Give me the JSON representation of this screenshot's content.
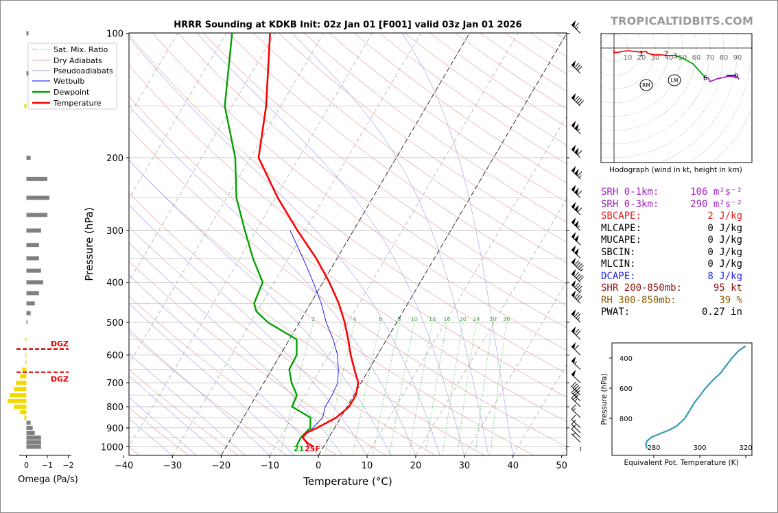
{
  "title": "HRRR Sounding at KDKB Init: 02z Jan 01 [F001] valid 03z Jan 01 2026",
  "brand": "TROPICALTIDBITS.COM",
  "colors": {
    "temperature": "#ff0000",
    "dewpoint": "#00a000",
    "wetbulb": "#0000dd",
    "dry_adiabat": "#e3a3a3",
    "pseudoadiabat": "#a9a9ea",
    "mix_ratio": "#3caa3c",
    "srh": "#a020c0",
    "cape": "#dd2222",
    "dcape": "#2222ee",
    "shear": "#8b1010",
    "rh": "#8b5a00",
    "omega_up": "#f5d800",
    "omega_down": "#808080",
    "thetae": "#3399bb"
  },
  "chart_data": [
    {
      "type": "line",
      "name": "skew-t",
      "xlabel": "Temperature (°C)",
      "ylabel": "Pressure (hPa)",
      "xlim": [
        -40,
        50
      ],
      "ylim": [
        1050,
        100
      ],
      "yscale": "log",
      "skew": true,
      "x_ticks": [
        "−40",
        "−30",
        "−20",
        "−10",
        "0",
        "10",
        "20",
        "30",
        "40",
        "50"
      ],
      "y_ticks": [
        "100",
        "200",
        "300",
        "400",
        "500",
        "600",
        "700",
        "800",
        "900",
        "1000"
      ],
      "legend": [
        "Sat. Mix. Ratio",
        "Dry Adiabats",
        "Pseudoadiabats",
        "Wetbulb",
        "Dewpoint",
        "Temperature"
      ],
      "legend_position": "top-left",
      "mixing_ratio_labels": [
        "2",
        "4",
        "6",
        "8",
        "10",
        "13",
        "16",
        "20",
        "24",
        "30",
        "36"
      ],
      "surface_labels": {
        "dewpoint": "21",
        "temperature": "25F"
      },
      "series": [
        {
          "name": "Temperature",
          "points": [
            [
              1000,
              -2.0
            ],
            [
              980,
              -3.7
            ],
            [
              950,
              -5.4
            ],
            [
              925,
              -5.2
            ],
            [
              900,
              -3.6
            ],
            [
              850,
              -0.9
            ],
            [
              800,
              0.4
            ],
            [
              750,
              0.4
            ],
            [
              700,
              -0.6
            ],
            [
              650,
              -3.0
            ],
            [
              600,
              -5.5
            ],
            [
              550,
              -7.9
            ],
            [
              500,
              -10.7
            ],
            [
              450,
              -14.2
            ],
            [
              400,
              -18.7
            ],
            [
              350,
              -24.3
            ],
            [
              300,
              -31.5
            ],
            [
              250,
              -39.5
            ],
            [
              200,
              -48.3
            ],
            [
              150,
              -53.0
            ],
            [
              100,
              -61.0
            ]
          ]
        },
        {
          "name": "Dewpoint",
          "points": [
            [
              1000,
              -5.6
            ],
            [
              950,
              -5.8
            ],
            [
              900,
              -5.0
            ],
            [
              850,
              -6.2
            ],
            [
              800,
              -11.3
            ],
            [
              750,
              -11.7
            ],
            [
              700,
              -14.3
            ],
            [
              650,
              -16.4
            ],
            [
              600,
              -16.6
            ],
            [
              550,
              -18.5
            ],
            [
              500,
              -26.5
            ],
            [
              470,
              -30.2
            ],
            [
              450,
              -31.6
            ],
            [
              400,
              -32.4
            ],
            [
              350,
              -37.3
            ],
            [
              300,
              -42.3
            ],
            [
              250,
              -48.0
            ],
            [
              200,
              -53.1
            ],
            [
              150,
              -61.5
            ],
            [
              100,
              -68.8
            ]
          ]
        },
        {
          "name": "Wetbulb",
          "points": [
            [
              1000,
              -3.0
            ],
            [
              950,
              -5.4
            ],
            [
              900,
              -4.5
            ],
            [
              850,
              -3.7
            ],
            [
              800,
              -4.5
            ],
            [
              750,
              -4.5
            ],
            [
              700,
              -4.8
            ],
            [
              650,
              -6.3
            ],
            [
              600,
              -8.2
            ],
            [
              550,
              -11.0
            ],
            [
              500,
              -14.5
            ],
            [
              450,
              -17.8
            ],
            [
              400,
              -22.0
            ],
            [
              350,
              -27.0
            ],
            [
              300,
              -33.0
            ]
          ]
        }
      ],
      "wind_barbs_kt": [
        {
          "p": 975,
          "spd": 5
        },
        {
          "p": 950,
          "spd": 10
        },
        {
          "p": 925,
          "spd": 10
        },
        {
          "p": 900,
          "spd": 10
        },
        {
          "p": 850,
          "spd": 15
        },
        {
          "p": 800,
          "spd": 25
        },
        {
          "p": 775,
          "spd": 35
        },
        {
          "p": 750,
          "spd": 45
        },
        {
          "p": 700,
          "spd": 50
        },
        {
          "p": 650,
          "spd": 55
        },
        {
          "p": 600,
          "spd": 60
        },
        {
          "p": 550,
          "spd": 70
        },
        {
          "p": 500,
          "spd": 75
        },
        {
          "p": 450,
          "spd": 80
        },
        {
          "p": 425,
          "spd": 85
        },
        {
          "p": 400,
          "spd": 90
        },
        {
          "p": 375,
          "spd": 95
        },
        {
          "p": 350,
          "spd": 100
        },
        {
          "p": 325,
          "spd": 100
        },
        {
          "p": 300,
          "spd": 105
        },
        {
          "p": 275,
          "spd": 110
        },
        {
          "p": 250,
          "spd": 110
        },
        {
          "p": 225,
          "spd": 115
        },
        {
          "p": 200,
          "spd": 110
        },
        {
          "p": 175,
          "spd": 105
        },
        {
          "p": 150,
          "spd": 90
        },
        {
          "p": 125,
          "spd": 80
        },
        {
          "p": 100,
          "spd": 65
        }
      ]
    },
    {
      "type": "bar",
      "name": "omega",
      "xlabel": "Omega (Pa/s)",
      "x_ticks": [
        "0",
        "−1",
        "−2"
      ],
      "dgz_label": "DGZ",
      "dgz_levels_hpa": [
        580,
        660
      ],
      "values": [
        {
          "p": 1000,
          "w": 0.7
        },
        {
          "p": 975,
          "w": 0.7
        },
        {
          "p": 950,
          "w": 0.7
        },
        {
          "p": 925,
          "w": 0.4
        },
        {
          "p": 900,
          "w": 0.3
        },
        {
          "p": 875,
          "w": 0.2
        },
        {
          "p": 850,
          "w": -0.1
        },
        {
          "p": 825,
          "w": -0.3
        },
        {
          "p": 800,
          "w": -0.6
        },
        {
          "p": 775,
          "w": -0.9
        },
        {
          "p": 750,
          "w": -0.8
        },
        {
          "p": 725,
          "w": -0.6
        },
        {
          "p": 700,
          "w": -0.5
        },
        {
          "p": 675,
          "w": -0.3
        },
        {
          "p": 650,
          "w": -0.2
        },
        {
          "p": 625,
          "w": -0.05
        },
        {
          "p": 600,
          "w": -0.05
        },
        {
          "p": 550,
          "w": -0.05
        },
        {
          "p": 500,
          "w": 0.05
        },
        {
          "p": 475,
          "w": 0.2
        },
        {
          "p": 450,
          "w": 0.4
        },
        {
          "p": 425,
          "w": 0.6
        },
        {
          "p": 400,
          "w": 0.8
        },
        {
          "p": 375,
          "w": 0.7
        },
        {
          "p": 350,
          "w": 0.6
        },
        {
          "p": 325,
          "w": 0.6
        },
        {
          "p": 300,
          "w": 0.7
        },
        {
          "p": 275,
          "w": 1.0
        },
        {
          "p": 250,
          "w": 1.1
        },
        {
          "p": 225,
          "w": 1.0
        },
        {
          "p": 200,
          "w": 0.2
        },
        {
          "p": 150,
          "w": -0.1
        },
        {
          "p": 125,
          "w": 0.1
        },
        {
          "p": 100,
          "w": 0.1
        }
      ]
    },
    {
      "type": "line",
      "name": "hodograph",
      "xlabel": "Hodograph (wind in kt, height in km)",
      "ring_labels": [
        "10",
        "20",
        "30",
        "40",
        "50",
        "60",
        "70",
        "80",
        "90"
      ],
      "height_labels": [
        {
          "label": "1",
          "u": 40,
          "v": -7
        },
        {
          "label": "2",
          "u": 76,
          "v": -7
        },
        {
          "label": "3",
          "u": 89,
          "v": -11
        },
        {
          "label": "6",
          "u": 133,
          "v": -43
        },
        {
          "label": "9",
          "u": 178,
          "v": -40
        }
      ],
      "motion_markers": [
        {
          "label": "LM",
          "u": 89,
          "v": -7
        },
        {
          "label": "RM",
          "u": 48,
          "v": -14
        }
      ],
      "segments": [
        {
          "color": "#ff0000",
          "points": [
            [
              0,
              -3
            ],
            [
              0,
              -7
            ],
            [
              20,
              -4
            ],
            [
              40,
              -6
            ],
            [
              46,
              -5
            ],
            [
              50,
              -8
            ],
            [
              58,
              -10
            ],
            [
              70,
              -10
            ],
            [
              76,
              -11
            ],
            [
              89,
              -11
            ]
          ]
        },
        {
          "color": "#00a000",
          "points": [
            [
              89,
              -11
            ],
            [
              102,
              -16
            ],
            [
              115,
              -23
            ],
            [
              124,
              -33
            ],
            [
              133,
              -43
            ],
            [
              137,
              -43
            ]
          ]
        },
        {
          "color": "#a020c0",
          "points": [
            [
              137,
              -43
            ],
            [
              140,
              -49
            ],
            [
              150,
              -45
            ],
            [
              168,
              -41
            ],
            [
              181,
              -43
            ],
            [
              182,
              -46
            ]
          ]
        },
        {
          "color": "#0000dd",
          "points": [
            [
              164,
              -40
            ],
            [
              178,
              -40
            ]
          ]
        }
      ]
    },
    {
      "type": "line",
      "name": "theta-e",
      "xlabel": "Equivalent Pot. Temperature (K)",
      "ylabel": "Pressure (hPa)",
      "xlim": [
        272,
        322
      ],
      "ylim": [
        1000,
        300
      ],
      "x_ticks": [
        "280",
        "300",
        "320"
      ],
      "y_ticks": [
        "400",
        "600",
        "800"
      ],
      "series": [
        {
          "name": "Theta-E",
          "points": [
            [
              1000,
              277
            ],
            [
              975,
              276.5
            ],
            [
              950,
              277
            ],
            [
              925,
              279
            ],
            [
              900,
              283
            ],
            [
              875,
              287
            ],
            [
              850,
              290
            ],
            [
              800,
              293.5
            ],
            [
              750,
              295.5
            ],
            [
              700,
              297.5
            ],
            [
              650,
              300
            ],
            [
              600,
              302.5
            ],
            [
              550,
              305.5
            ],
            [
              500,
              309
            ],
            [
              450,
              311.5
            ],
            [
              400,
              314
            ],
            [
              350,
              317
            ],
            [
              320,
              320
            ]
          ]
        }
      ]
    }
  ],
  "stats": [
    {
      "label": "SRH 0-1km:",
      "value": "106 m²s⁻²",
      "color": "#a020c0"
    },
    {
      "label": "SRH 0-3km:",
      "value": "290 m²s⁻²",
      "color": "#a020c0"
    },
    {
      "label": "SBCAPE:",
      "value": "2 J/kg",
      "color": "#dd2222"
    },
    {
      "label": "MLCAPE:",
      "value": "0 J/kg",
      "color": "#000000"
    },
    {
      "label": "MUCAPE:",
      "value": "0 J/kg",
      "color": "#000000"
    },
    {
      "label": "SBCIN:",
      "value": "0 J/kg",
      "color": "#000000"
    },
    {
      "label": "MLCIN:",
      "value": "0 J/kg",
      "color": "#000000"
    },
    {
      "label": "DCAPE:",
      "value": "8 J/kg",
      "color": "#2222ee"
    },
    {
      "label": "SHR 200-850mb:",
      "value": "95 kt",
      "color": "#8b1010"
    },
    {
      "label": "RH 300-850mb:",
      "value": "39 %",
      "color": "#8b5a00"
    },
    {
      "label": "PWAT:",
      "value": "0.27 in",
      "color": "#000000"
    }
  ]
}
